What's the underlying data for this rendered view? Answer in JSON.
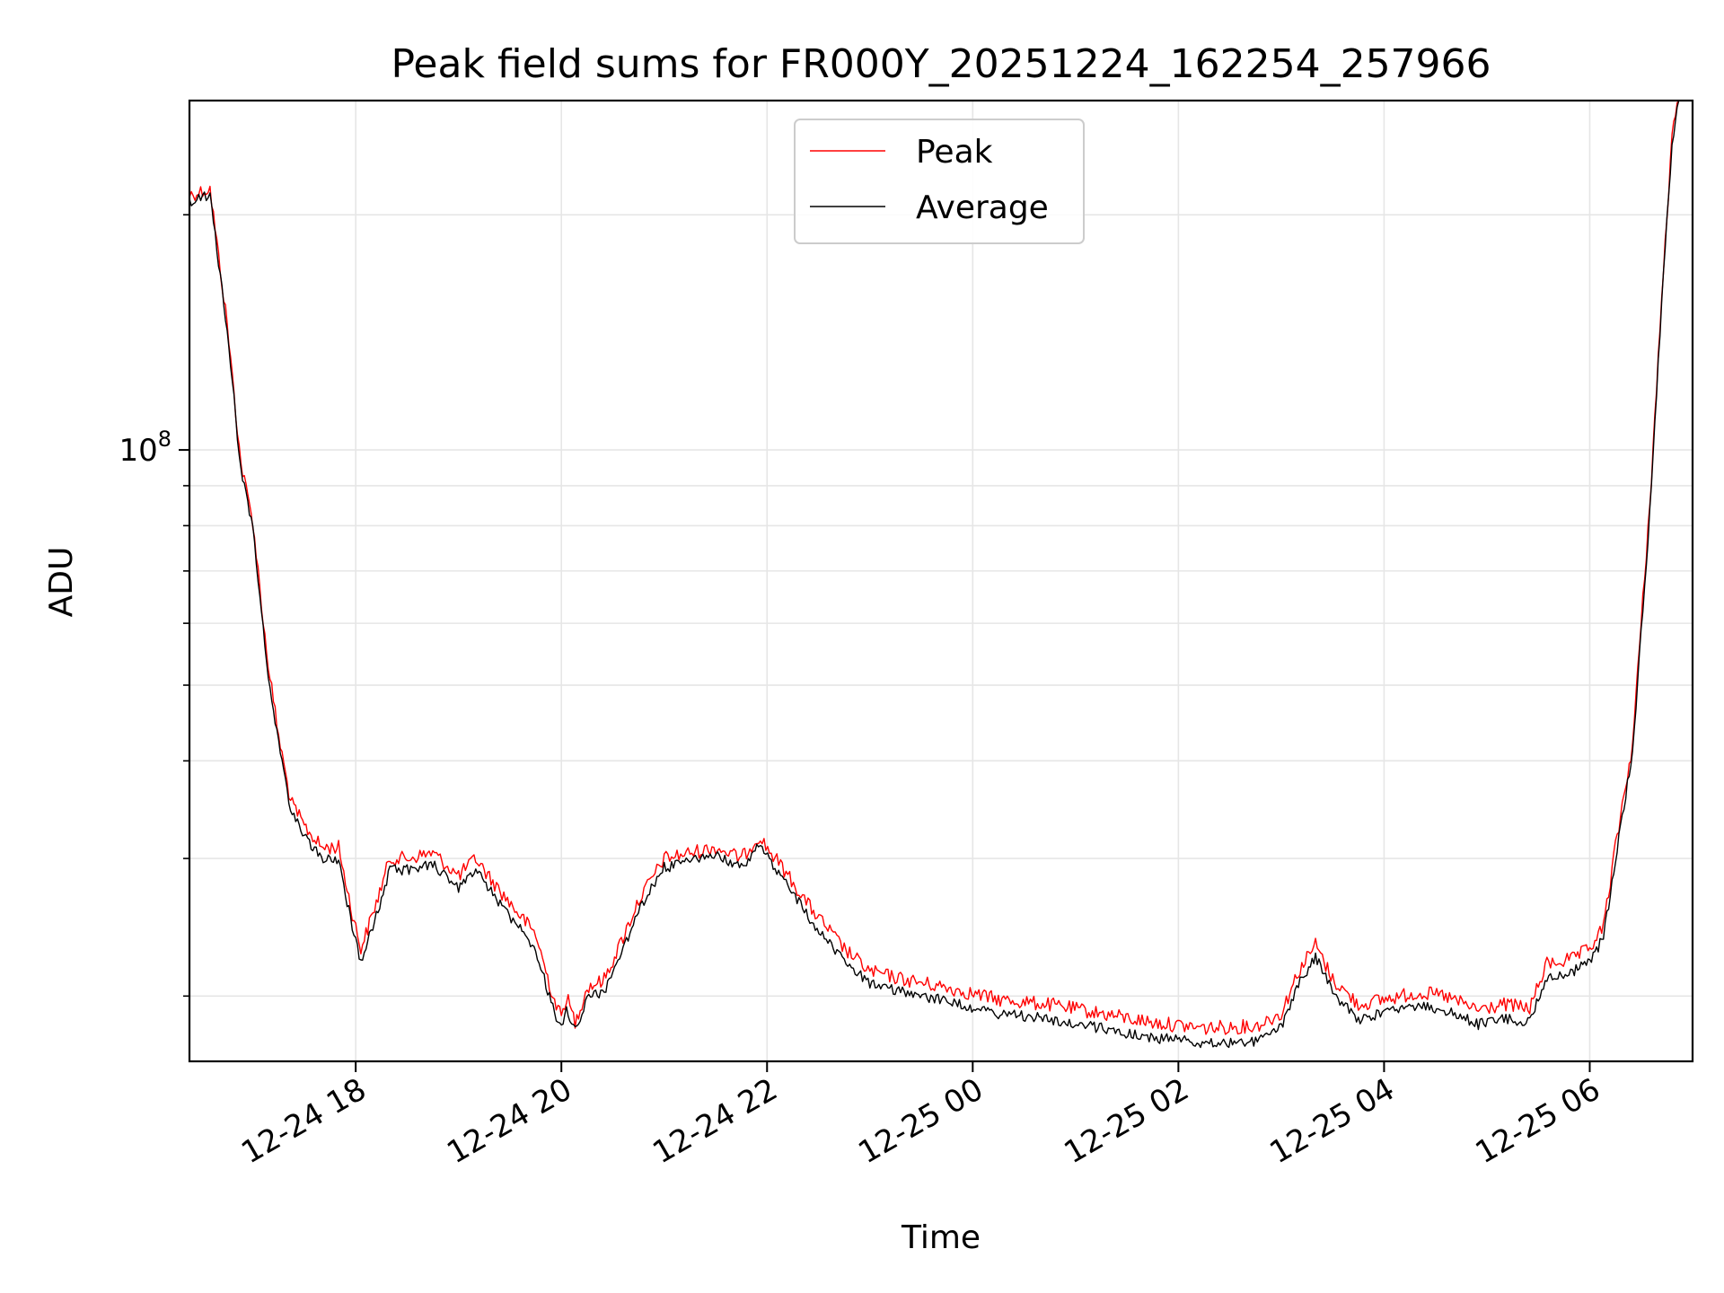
{
  "chart_data": {
    "type": "line",
    "title": "Peak field sums for FR000Y_20251224_162254_257966",
    "xlabel": "Time",
    "ylabel": "ADU",
    "y_scale": "log",
    "ylim": [
      16500000,
      280000000
    ],
    "xlim": [
      "2025-12-24 16:23",
      "2025-12-25 07:00"
    ],
    "x_ticks": [
      "2025-12-24 18:00",
      "2025-12-24 20:00",
      "2025-12-24 22:00",
      "2025-12-25 00:00",
      "2025-12-25 02:00",
      "2025-12-25 04:00",
      "2025-12-25 06:00"
    ],
    "x_tick_labels": [
      "12-24 18",
      "12-24 20",
      "12-24 22",
      "12-25 00",
      "12-25 02",
      "12-25 04",
      "12-25 06"
    ],
    "y_ticks": [
      100000000
    ],
    "y_tick_base": "10",
    "y_tick_exponent": "8",
    "grid": true,
    "legend_position": "upper center",
    "series": [
      {
        "name": "Peak",
        "color": "#ff0000",
        "points": [
          [
            "2025-12-24 16:23",
            212000000.0
          ],
          [
            "2025-12-24 16:35",
            216000000.0
          ],
          [
            "2025-12-24 16:45",
            145000000.0
          ],
          [
            "2025-12-24 16:53",
            96000000.0
          ],
          [
            "2025-12-24 17:00",
            81000000.0
          ],
          [
            "2025-12-24 17:08",
            55000000.0
          ],
          [
            "2025-12-24 17:15",
            43000000.0
          ],
          [
            "2025-12-24 17:22",
            35500000.0
          ],
          [
            "2025-12-24 17:30",
            33000000.0
          ],
          [
            "2025-12-24 17:40",
            31000000.0
          ],
          [
            "2025-12-24 17:50",
            31000000.0
          ],
          [
            "2025-12-24 17:58",
            25500000.0
          ],
          [
            "2025-12-24 18:03",
            23000000.0
          ],
          [
            "2025-12-24 18:10",
            25500000.0
          ],
          [
            "2025-12-24 18:20",
            30000000.0
          ],
          [
            "2025-12-24 18:30",
            30000000.0
          ],
          [
            "2025-12-24 18:45",
            30500000.0
          ],
          [
            "2025-12-24 19:00",
            28500000.0
          ],
          [
            "2025-12-24 19:10",
            30000000.0
          ],
          [
            "2025-12-24 19:20",
            28000000.0
          ],
          [
            "2025-12-24 19:35",
            25500000.0
          ],
          [
            "2025-12-24 19:45",
            24000000.0
          ],
          [
            "2025-12-24 19:55",
            20000000.0
          ],
          [
            "2025-12-24 20:00",
            18800000.0
          ],
          [
            "2025-12-24 20:03",
            20000000.0
          ],
          [
            "2025-12-24 20:08",
            18500000.0
          ],
          [
            "2025-12-24 20:15",
            20500000.0
          ],
          [
            "2025-12-24 20:25",
            21000000.0
          ],
          [
            "2025-12-24 20:35",
            23500000.0
          ],
          [
            "2025-12-24 20:45",
            26500000.0
          ],
          [
            "2025-12-24 21:00",
            30000000.0
          ],
          [
            "2025-12-24 21:15",
            30500000.0
          ],
          [
            "2025-12-24 21:30",
            31000000.0
          ],
          [
            "2025-12-24 21:45",
            30000000.0
          ],
          [
            "2025-12-24 21:55",
            32000000.0
          ],
          [
            "2025-12-24 22:10",
            29000000.0
          ],
          [
            "2025-12-24 22:25",
            26000000.0
          ],
          [
            "2025-12-24 22:45",
            23000000.0
          ],
          [
            "2025-12-24 23:00",
            21500000.0
          ],
          [
            "2025-12-24 23:20",
            21000000.0
          ],
          [
            "2025-12-24 23:45",
            20500000.0
          ],
          [
            "2025-12-25 00:15",
            19800000.0
          ],
          [
            "2025-12-25 00:45",
            19500000.0
          ],
          [
            "2025-12-25 01:15",
            19000000.0
          ],
          [
            "2025-12-25 01:45",
            18500000.0
          ],
          [
            "2025-12-25 02:15",
            18200000.0
          ],
          [
            "2025-12-25 02:45",
            18300000.0
          ],
          [
            "2025-12-25 03:00",
            19000000.0
          ],
          [
            "2025-12-25 03:10",
            21500000.0
          ],
          [
            "2025-12-25 03:20",
            23300000.0
          ],
          [
            "2025-12-25 03:30",
            21000000.0
          ],
          [
            "2025-12-25 03:45",
            19500000.0
          ],
          [
            "2025-12-25 04:00",
            19800000.0
          ],
          [
            "2025-12-25 04:20",
            20200000.0
          ],
          [
            "2025-12-25 04:35",
            20000000.0
          ],
          [
            "2025-12-25 04:55",
            19200000.0
          ],
          [
            "2025-12-25 05:10",
            19500000.0
          ],
          [
            "2025-12-25 05:25",
            19300000.0
          ],
          [
            "2025-12-25 05:35",
            22000000.0
          ],
          [
            "2025-12-25 05:50",
            22300000.0
          ],
          [
            "2025-12-25 06:00",
            23000000.0
          ],
          [
            "2025-12-25 06:08",
            24500000.0
          ],
          [
            "2025-12-25 06:15",
            31000000.0
          ],
          [
            "2025-12-25 06:25",
            42000000.0
          ],
          [
            "2025-12-25 06:35",
            85000000.0
          ],
          [
            "2025-12-25 06:43",
            170000000.0
          ],
          [
            "2025-12-25 06:48",
            250000000.0
          ],
          [
            "2025-12-25 06:52",
            285000000.0
          ]
        ]
      },
      {
        "name": "Average",
        "color": "#000000",
        "points": [
          [
            "2025-12-24 16:23",
            208000000.0
          ],
          [
            "2025-12-24 16:35",
            212000000.0
          ],
          [
            "2025-12-24 16:45",
            143000000.0
          ],
          [
            "2025-12-24 16:53",
            94000000.0
          ],
          [
            "2025-12-24 17:00",
            79000000.0
          ],
          [
            "2025-12-24 17:08",
            53500000.0
          ],
          [
            "2025-12-24 17:15",
            42000000.0
          ],
          [
            "2025-12-24 17:22",
            34500000.0
          ],
          [
            "2025-12-24 17:30",
            32000000.0
          ],
          [
            "2025-12-24 17:40",
            30000000.0
          ],
          [
            "2025-12-24 17:50",
            29800000.0
          ],
          [
            "2025-12-24 17:58",
            24500000.0
          ],
          [
            "2025-12-24 18:03",
            22200000.0
          ],
          [
            "2025-12-24 18:10",
            24500000.0
          ],
          [
            "2025-12-24 18:20",
            29000000.0
          ],
          [
            "2025-12-24 18:30",
            29000000.0
          ],
          [
            "2025-12-24 18:45",
            29500000.0
          ],
          [
            "2025-12-24 19:00",
            27500000.0
          ],
          [
            "2025-12-24 19:10",
            29000000.0
          ],
          [
            "2025-12-24 19:20",
            27000000.0
          ],
          [
            "2025-12-24 19:35",
            24500000.0
          ],
          [
            "2025-12-24 19:45",
            23000000.0
          ],
          [
            "2025-12-24 19:55",
            19300000.0
          ],
          [
            "2025-12-24 20:00",
            18200000.0
          ],
          [
            "2025-12-24 20:03",
            19400000.0
          ],
          [
            "2025-12-24 20:08",
            18000000.0
          ],
          [
            "2025-12-24 20:15",
            19800000.0
          ],
          [
            "2025-12-24 20:25",
            20300000.0
          ],
          [
            "2025-12-24 20:35",
            22700000.0
          ],
          [
            "2025-12-24 20:45",
            25700000.0
          ],
          [
            "2025-12-24 21:00",
            29200000.0
          ],
          [
            "2025-12-24 21:15",
            29700000.0
          ],
          [
            "2025-12-24 21:30",
            30200000.0
          ],
          [
            "2025-12-24 21:45",
            29200000.0
          ],
          [
            "2025-12-24 21:55",
            31200000.0
          ],
          [
            "2025-12-24 22:10",
            28200000.0
          ],
          [
            "2025-12-24 22:25",
            25000000.0
          ],
          [
            "2025-12-24 22:45",
            22200000.0
          ],
          [
            "2025-12-24 23:00",
            20700000.0
          ],
          [
            "2025-12-24 23:20",
            20200000.0
          ],
          [
            "2025-12-24 23:45",
            19700000.0
          ],
          [
            "2025-12-25 00:15",
            19000000.0
          ],
          [
            "2025-12-25 00:45",
            18700000.0
          ],
          [
            "2025-12-25 01:15",
            18200000.0
          ],
          [
            "2025-12-25 01:45",
            17700000.0
          ],
          [
            "2025-12-25 02:15",
            17400000.0
          ],
          [
            "2025-12-25 02:45",
            17500000.0
          ],
          [
            "2025-12-25 03:00",
            18200000.0
          ],
          [
            "2025-12-25 03:10",
            20700000.0
          ],
          [
            "2025-12-25 03:20",
            22500000.0
          ],
          [
            "2025-12-25 03:30",
            20200000.0
          ],
          [
            "2025-12-25 03:45",
            18700000.0
          ],
          [
            "2025-12-25 04:00",
            19000000.0
          ],
          [
            "2025-12-25 04:20",
            19400000.0
          ],
          [
            "2025-12-25 04:35",
            19200000.0
          ],
          [
            "2025-12-25 04:55",
            18400000.0
          ],
          [
            "2025-12-25 05:10",
            18700000.0
          ],
          [
            "2025-12-25 05:25",
            18500000.0
          ],
          [
            "2025-12-25 05:35",
            21200000.0
          ],
          [
            "2025-12-25 05:50",
            21500000.0
          ],
          [
            "2025-12-25 06:00",
            22200000.0
          ],
          [
            "2025-12-25 06:08",
            23700000.0
          ],
          [
            "2025-12-25 06:15",
            30000000.0
          ],
          [
            "2025-12-25 06:25",
            41000000.0
          ],
          [
            "2025-12-25 06:35",
            83000000.0
          ],
          [
            "2025-12-25 06:43",
            168000000.0
          ],
          [
            "2025-12-25 06:48",
            245000000.0
          ],
          [
            "2025-12-25 06:52",
            280000000.0
          ]
        ]
      }
    ]
  }
}
